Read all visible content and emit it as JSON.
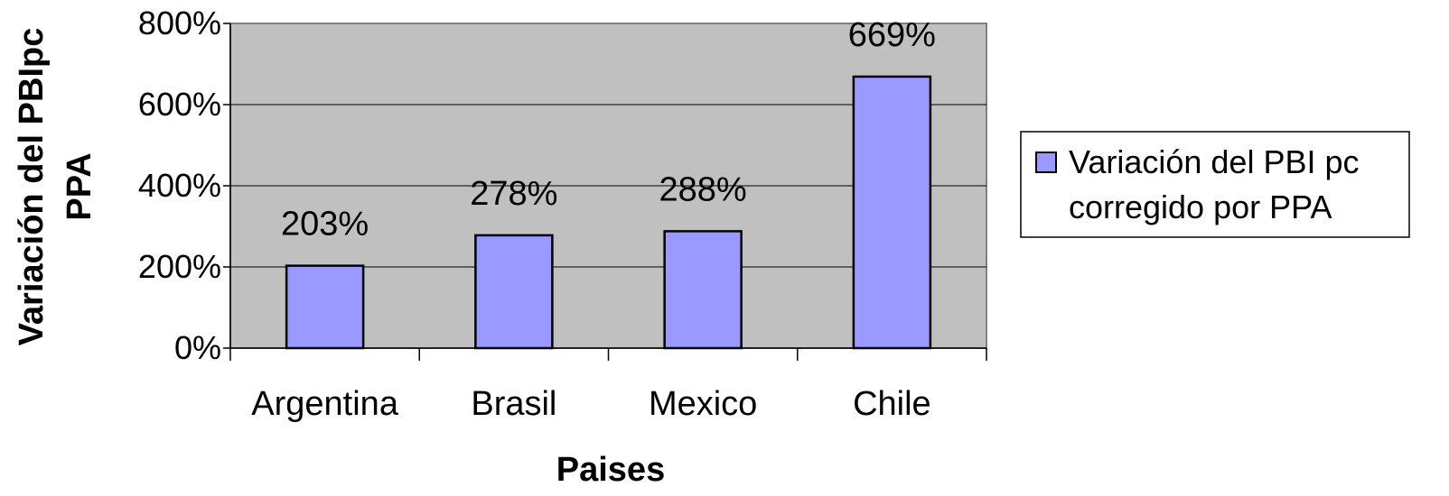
{
  "chart_data": {
    "type": "bar",
    "categories": [
      "Argentina",
      "Brasil",
      "Mexico",
      "Chile"
    ],
    "series": [
      {
        "name": "Variación del PBI pc corregido por PPA",
        "values": [
          203,
          278,
          288,
          669
        ]
      }
    ],
    "data_labels": [
      "203%",
      "278%",
      "288%",
      "669%"
    ],
    "xlabel": "Paises",
    "ylabel": [
      "Variación del PBIpc",
      "PPA"
    ],
    "ylim": [
      0,
      800
    ],
    "yticks": [
      0,
      200,
      400,
      600,
      800
    ],
    "ytick_labels": [
      "0%",
      "200%",
      "400%",
      "600%",
      "800%"
    ],
    "grid": true,
    "legend_position": "right",
    "legend_lines": [
      "Variación del PBI pc",
      "corregido por PPA"
    ],
    "colors": {
      "bar": "#9999ff",
      "plot_bg": "#c0c0c0",
      "grid": "#000000",
      "border": "#808080"
    }
  }
}
